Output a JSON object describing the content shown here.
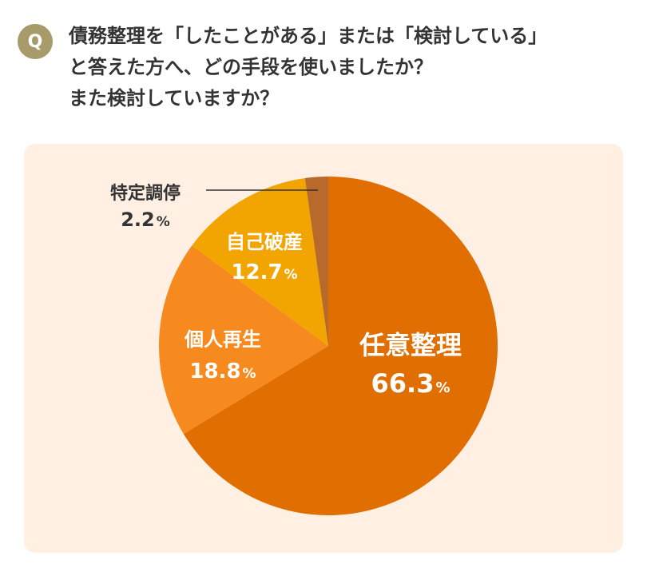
{
  "question": {
    "badge": "Q",
    "lines": [
      "債務整理を「したことがある」または「検討している」",
      "と答えた方へ、どの手段を使いましたか？",
      "また検討していますか？"
    ]
  },
  "colors": {
    "badge": "#a79a6b",
    "panel": "#fff0e3",
    "leader_line": "#333333"
  },
  "chart_data": {
    "type": "pie",
    "title": "",
    "unit": "%",
    "slices": [
      {
        "label": "任意整理",
        "value": 66.3,
        "value_text": "66.3",
        "color": "#e06e00",
        "text_color": "#ffffff"
      },
      {
        "label": "個人再生",
        "value": 18.8,
        "value_text": "18.8",
        "color": "#f68a1f",
        "text_color": "#ffffff"
      },
      {
        "label": "自己破産",
        "value": 12.7,
        "value_text": "12.7",
        "color": "#f2a500",
        "text_color": "#ffffff"
      },
      {
        "label": "特定調停",
        "value": 2.2,
        "value_text": "2.2",
        "color": "#b86a2c",
        "text_color": "#333333"
      }
    ]
  }
}
